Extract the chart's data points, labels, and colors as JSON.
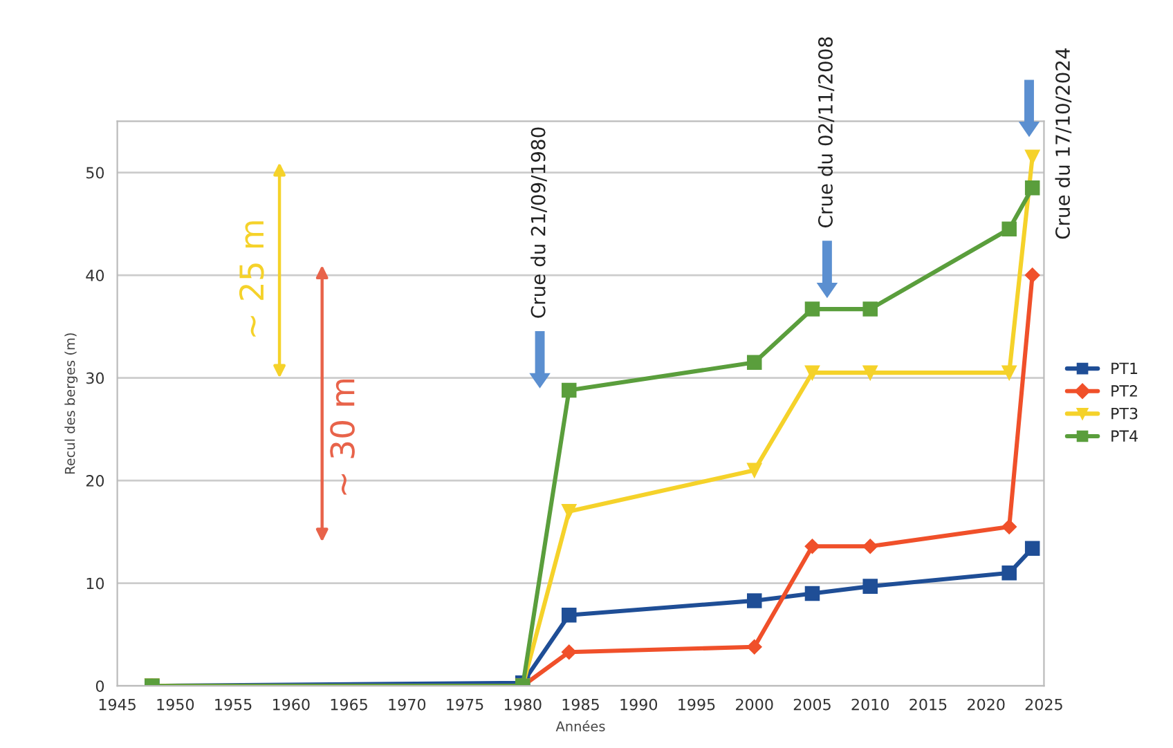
{
  "chart_data": {
    "type": "line",
    "xlabel": "Années",
    "ylabel": "Recul des berges (m)",
    "x": [
      1948,
      1980,
      1984,
      2000,
      2005,
      2010,
      2022,
      2024
    ],
    "series": [
      {
        "name": "PT1",
        "color": "#1f4e96",
        "marker": "square",
        "values": [
          0,
          0.3,
          6.9,
          8.3,
          9.0,
          9.7,
          11.0,
          13.4
        ]
      },
      {
        "name": "PT2",
        "color": "#f0502a",
        "marker": "diamond",
        "values": [
          0,
          0,
          3.3,
          3.8,
          13.6,
          13.6,
          15.5,
          40
        ]
      },
      {
        "name": "PT3",
        "color": "#f5d22a",
        "marker": "triangle",
        "values": [
          0,
          0,
          17,
          21,
          30.5,
          30.5,
          30.5,
          51.5
        ]
      },
      {
        "name": "PT4",
        "color": "#5a9e3c",
        "marker": "square",
        "values": [
          0,
          0,
          28.8,
          31.5,
          36.7,
          36.7,
          44.5,
          48.5
        ]
      }
    ],
    "xlim": [
      1945,
      2025
    ],
    "ylim": [
      0,
      55
    ],
    "xticks": [
      1945,
      1950,
      1955,
      1960,
      1965,
      1970,
      1975,
      1980,
      1985,
      1990,
      1995,
      2000,
      2005,
      2010,
      2015,
      2020,
      2025
    ],
    "yticks": [
      0,
      10,
      20,
      30,
      40,
      50
    ],
    "grid": "y",
    "legend": "right",
    "line_style": "solid",
    "annotations": [
      "Crue du 21/09/1980",
      "Crue du 02/11/2008",
      "Crue du 17/10/2024",
      "~ 25 m",
      "~ 30 m"
    ]
  }
}
